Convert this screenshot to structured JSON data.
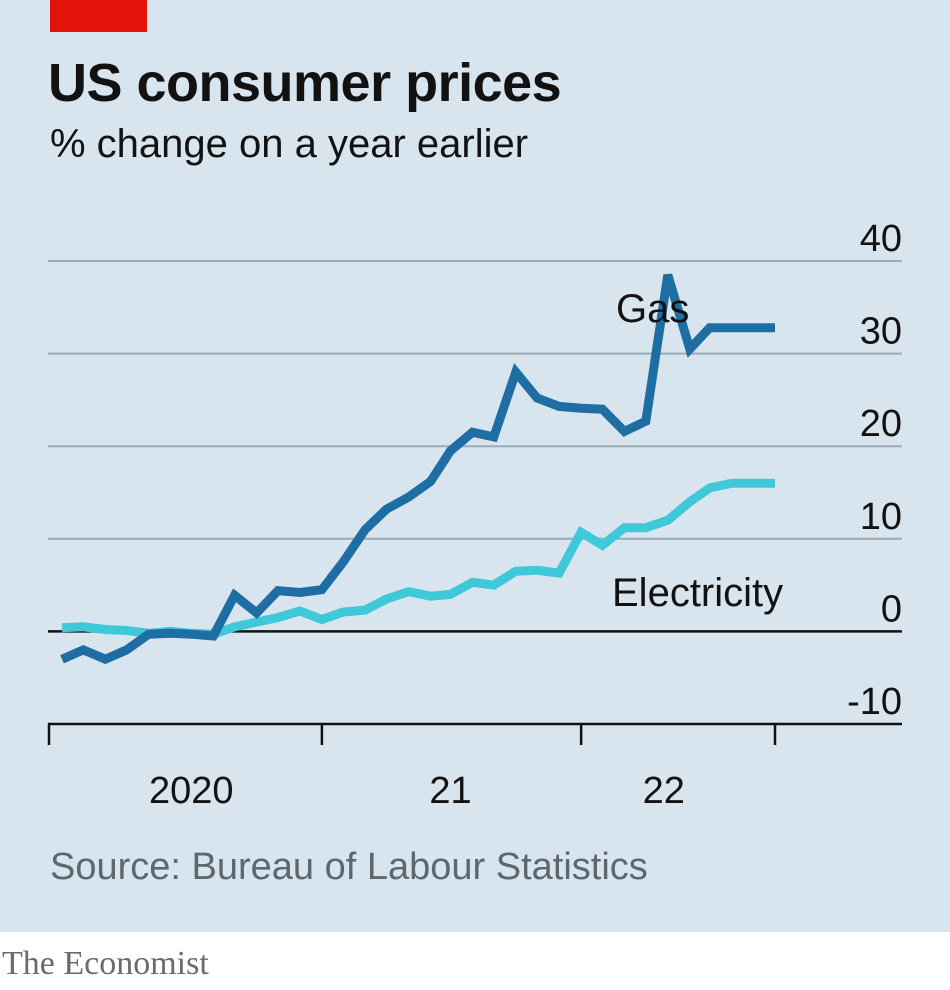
{
  "header": {
    "title": "US consumer prices",
    "subtitle": "% change on a year earlier"
  },
  "footer": {
    "source": "Source: Bureau of Labour Statistics",
    "brand": "The Economist"
  },
  "colors": {
    "background": "#d8e5ee",
    "red_tag": "#e3120b",
    "gas": "#1f6ea3",
    "electricity": "#3ec8d8",
    "grid": "#9aabb8",
    "zero_line": "#121212"
  },
  "chart_data": {
    "type": "line",
    "ylim": [
      -10,
      40
    ],
    "yticks": [
      40,
      30,
      20,
      10,
      0,
      -10
    ],
    "ytick_labels": [
      "40",
      "30",
      "20",
      "10",
      "0",
      "-10"
    ],
    "y_axis_side": "right",
    "x_tick_labels": [
      "2020",
      "21",
      "22"
    ],
    "grid": true,
    "x": [
      "2019-09",
      "2019-10",
      "2019-11",
      "2019-12",
      "2020-01",
      "2020-02",
      "2020-03",
      "2020-04",
      "2020-05",
      "2020-06",
      "2020-07",
      "2020-08",
      "2020-09",
      "2020-10",
      "2020-11",
      "2020-12",
      "2021-01",
      "2021-02",
      "2021-03",
      "2021-04",
      "2021-05",
      "2021-06",
      "2021-07",
      "2021-08",
      "2021-09",
      "2021-10",
      "2021-11",
      "2021-12",
      "2022-01",
      "2022-02",
      "2022-03",
      "2022-04",
      "2022-05",
      "2022-06",
      "2022-07",
      "2022-08"
    ],
    "series": [
      {
        "name": "Gas",
        "values": [
          -3.0,
          -2.0,
          -3.0,
          -2.0,
          -0.3,
          -0.2,
          -0.3,
          -0.5,
          3.9,
          2.0,
          4.4,
          4.2,
          4.5,
          7.5,
          11.0,
          13.2,
          14.5,
          16.2,
          19.5,
          21.5,
          21.0,
          28.0,
          25.2,
          24.3,
          24.1,
          24.0,
          21.6,
          22.7,
          38.5,
          30.5,
          32.8,
          32.8,
          32.8,
          32.8,
          32.8,
          32.8
        ],
        "label": "Gas"
      },
      {
        "name": "Electricity",
        "values": [
          0.4,
          0.5,
          0.2,
          0.1,
          -0.2,
          0.0,
          -0.2,
          -0.3,
          0.5,
          1.0,
          1.5,
          2.2,
          1.3,
          2.1,
          2.3,
          3.5,
          4.3,
          3.8,
          4.0,
          5.3,
          5.0,
          6.5,
          6.6,
          6.3,
          10.7,
          9.3,
          11.2,
          11.2,
          12.0,
          14.0,
          15.5,
          16.0,
          16.0,
          16.0,
          16.0,
          16.0
        ],
        "label": "Electricity"
      }
    ]
  }
}
